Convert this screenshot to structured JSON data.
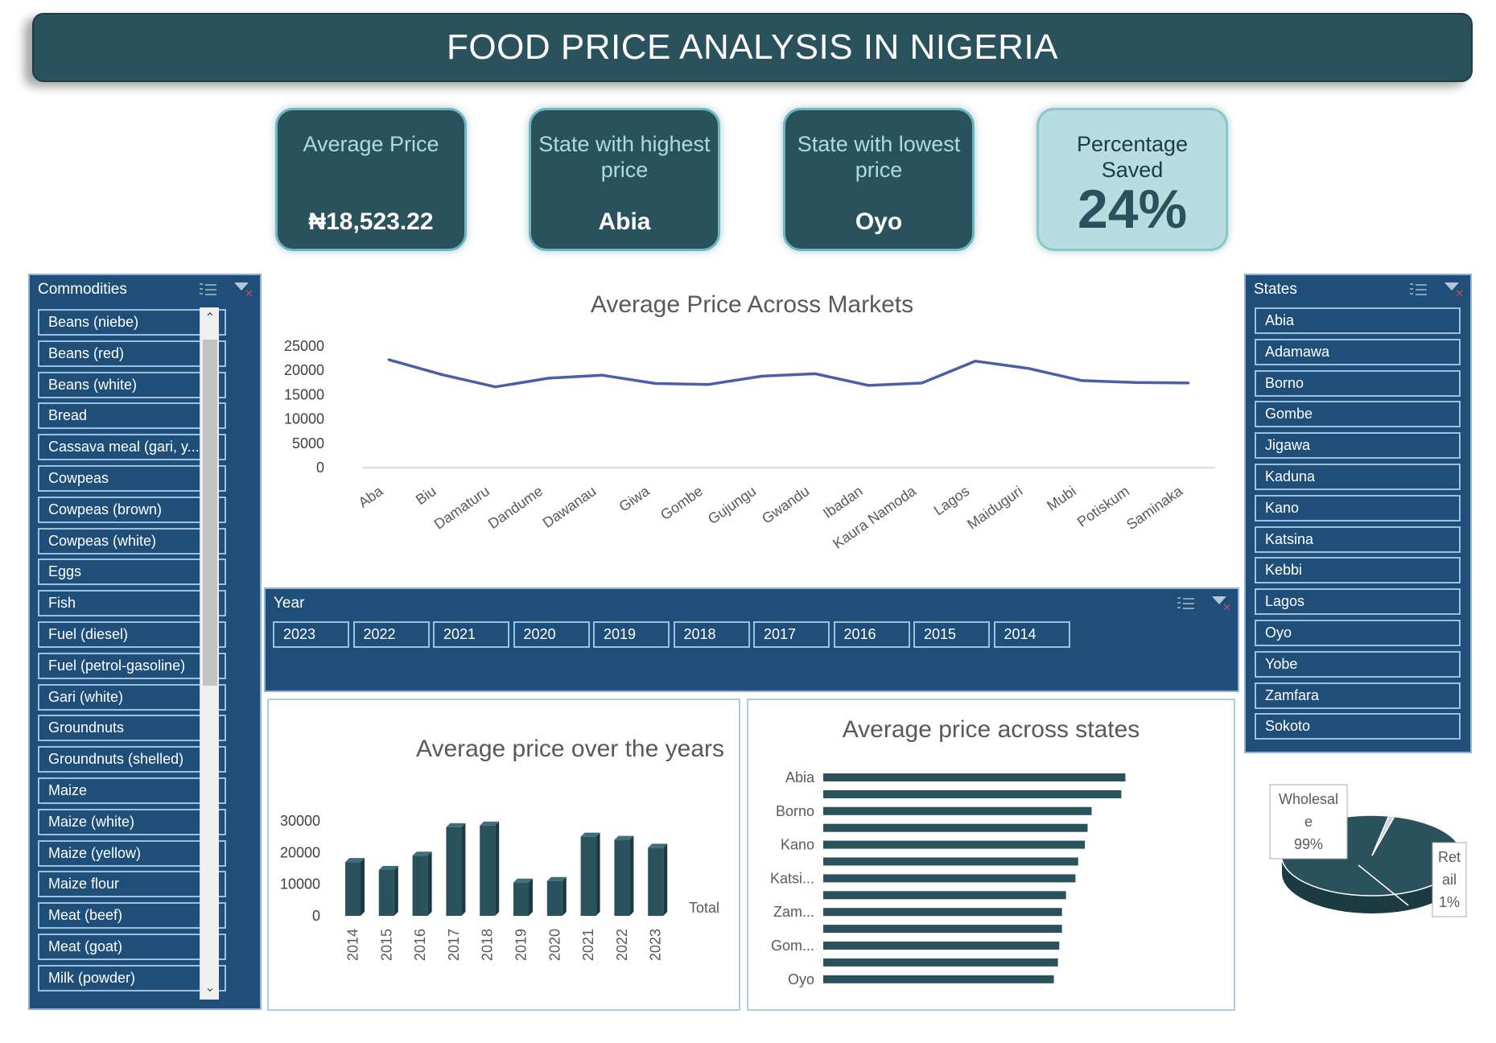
{
  "title": "FOOD PRICE ANALYSIS IN NIGERIA",
  "kpis": {
    "avg_label": "Average Price",
    "avg_value": "₦18,523.22",
    "high_label": "State with highest price",
    "high_value": "Abia",
    "low_label": "State with lowest price",
    "low_value": "Oyo",
    "pct_label": "Percentage Saved",
    "pct_value": "24%"
  },
  "commodities_slicer": {
    "title": "Commodities",
    "items": [
      "Beans (niebe)",
      "Beans (red)",
      "Beans (white)",
      "Bread",
      "Cassava meal (gari, y...",
      "Cowpeas",
      "Cowpeas (brown)",
      "Cowpeas (white)",
      "Eggs",
      "Fish",
      "Fuel (diesel)",
      "Fuel (petrol-gasoline)",
      "Gari (white)",
      "Groundnuts",
      "Groundnuts (shelled)",
      "Maize",
      "Maize (white)",
      "Maize (yellow)",
      "Maize flour",
      "Meat (beef)",
      "Meat (goat)",
      "Milk (powder)"
    ]
  },
  "states_slicer": {
    "title": "States",
    "items": [
      "Abia",
      "Adamawa",
      "Borno",
      "Gombe",
      "Jigawa",
      "Kaduna",
      "Kano",
      "Katsina",
      "Kebbi",
      "Lagos",
      "Oyo",
      "Yobe",
      "Zamfara",
      "Sokoto"
    ]
  },
  "year_slicer": {
    "title": "Year",
    "items": [
      "2023",
      "2022",
      "2021",
      "2020",
      "2019",
      "2018",
      "2017",
      "2016",
      "2015",
      "2014"
    ]
  },
  "chart_data": [
    {
      "type": "line",
      "title": "Average Price Across Markets",
      "categories": [
        "Aba",
        "Biu",
        "Damaturu",
        "Dandume",
        "Dawanau",
        "Giwa",
        "Gombe",
        "Gujungu",
        "Gwandu",
        "Ibadan",
        "Kaura Namoda",
        "Lagos",
        "Maiduguri",
        "Mubi",
        "Potiskum",
        "Saminaka"
      ],
      "values": [
        22200,
        19100,
        16600,
        18400,
        19000,
        17300,
        17100,
        18800,
        19300,
        16900,
        17400,
        21900,
        20400,
        17900,
        17500,
        17400
      ],
      "ylim": [
        0,
        25000
      ],
      "yticks": [
        0,
        5000,
        10000,
        15000,
        20000,
        25000
      ],
      "color": "#4a5fa8"
    },
    {
      "type": "bar",
      "title": "Average price over the years",
      "categories": [
        "2014",
        "2015",
        "2016",
        "2017",
        "2018",
        "2019",
        "2020",
        "2021",
        "2022",
        "2023"
      ],
      "values": [
        17000,
        14500,
        19000,
        28000,
        28500,
        10500,
        11000,
        25000,
        24000,
        21500
      ],
      "ylim": [
        0,
        30000
      ],
      "yticks": [
        0,
        10000,
        20000,
        30000
      ],
      "legend": "Total",
      "color": "#2a525d"
    },
    {
      "type": "bar",
      "orientation": "horizontal",
      "title": "Average price across states",
      "categories": [
        "Abia",
        "",
        "Borno",
        "",
        "Kano",
        "",
        "Katsi...",
        "",
        "Zam...",
        "",
        "Gom...",
        "",
        "Oyo"
      ],
      "values": [
        22400,
        22100,
        19900,
        19600,
        19400,
        18900,
        18700,
        18000,
        17700,
        17700,
        17500,
        17400,
        17100
      ],
      "color": "#2a525d"
    },
    {
      "type": "pie",
      "labels": [
        "Wholesale",
        "Retail"
      ],
      "values": [
        99,
        1
      ],
      "label_texts": [
        "Wholesal e 99%",
        "Ret ail 1%"
      ],
      "colors": [
        "#2a525d",
        "#c9d6da"
      ]
    }
  ]
}
